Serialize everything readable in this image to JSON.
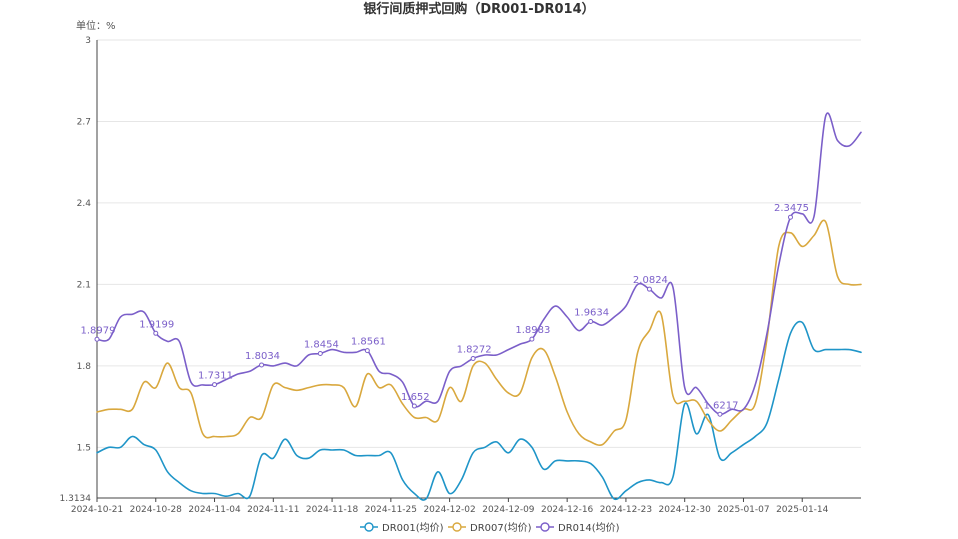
{
  "chart_data": {
    "type": "line",
    "title": "银行间质押式回购（DR001-DR014）",
    "unit_label": "单位：%",
    "ylim": [
      1.3134,
      3
    ],
    "y_ticks": [
      1.3134,
      1.5,
      1.8,
      2.1,
      2.4,
      2.7,
      3
    ],
    "y_tick_labels": [
      "1.3134",
      "1.5",
      "1.8",
      "2.1",
      "2.4",
      "2.7",
      "3"
    ],
    "x_tick_labels": [
      "2024-10-21",
      "2024-10-28",
      "2024-11-04",
      "2024-11-11",
      "2024-11-18",
      "2024-11-25",
      "2024-12-02",
      "2024-12-09",
      "2024-12-16",
      "2024-12-23",
      "2024-12-30",
      "2025-01-07",
      "2025-01-14"
    ],
    "x_tick_index": [
      0,
      5,
      10,
      15,
      20,
      25,
      30,
      35,
      40,
      45,
      50,
      55,
      60
    ],
    "n_points": 66,
    "grid": true,
    "legend_position": "bottom",
    "series": [
      {
        "name": "DR001(均价)",
        "color": "#1f95c8",
        "values": [
          1.48,
          1.5,
          1.5,
          1.54,
          1.51,
          1.49,
          1.41,
          1.37,
          1.34,
          1.33,
          1.33,
          1.32,
          1.33,
          1.32,
          1.47,
          1.46,
          1.53,
          1.47,
          1.46,
          1.49,
          1.49,
          1.49,
          1.47,
          1.47,
          1.47,
          1.48,
          1.38,
          1.33,
          1.31,
          1.41,
          1.33,
          1.38,
          1.48,
          1.5,
          1.52,
          1.48,
          1.53,
          1.5,
          1.42,
          1.45,
          1.45,
          1.45,
          1.44,
          1.39,
          1.31,
          1.34,
          1.37,
          1.38,
          1.37,
          1.39,
          1.66,
          1.55,
          1.62,
          1.46,
          1.48,
          1.51,
          1.54,
          1.59,
          1.75,
          1.92,
          1.96,
          1.86,
          1.86,
          1.86,
          1.86,
          1.85
        ]
      },
      {
        "name": "DR007(均价)",
        "color": "#d9a83e",
        "values": [
          1.63,
          1.64,
          1.64,
          1.64,
          1.74,
          1.72,
          1.81,
          1.72,
          1.7,
          1.55,
          1.54,
          1.54,
          1.55,
          1.61,
          1.61,
          1.73,
          1.72,
          1.71,
          1.72,
          1.73,
          1.73,
          1.72,
          1.65,
          1.77,
          1.72,
          1.73,
          1.66,
          1.61,
          1.61,
          1.6,
          1.72,
          1.67,
          1.8,
          1.81,
          1.75,
          1.7,
          1.7,
          1.83,
          1.86,
          1.76,
          1.63,
          1.55,
          1.52,
          1.51,
          1.56,
          1.6,
          1.85,
          1.93,
          1.99,
          1.69,
          1.67,
          1.67,
          1.6,
          1.56,
          1.6,
          1.64,
          1.66,
          1.9,
          2.24,
          2.29,
          2.24,
          2.28,
          2.33,
          2.13,
          2.1,
          2.1
        ]
      },
      {
        "name": "DR014(均价)",
        "color": "#7b5fc9",
        "values": [
          1.8979,
          1.8979,
          1.98,
          1.99,
          1.9979,
          1.9199,
          1.89,
          1.89,
          1.74,
          1.73,
          1.7311,
          1.75,
          1.77,
          1.78,
          1.8034,
          1.8,
          1.81,
          1.8,
          1.84,
          1.8454,
          1.86,
          1.85,
          1.85,
          1.8561,
          1.78,
          1.77,
          1.74,
          1.652,
          1.67,
          1.67,
          1.78,
          1.8,
          1.8272,
          1.84,
          1.84,
          1.86,
          1.88,
          1.8983,
          1.97,
          2.02,
          1.98,
          1.93,
          1.9634,
          1.95,
          1.98,
          2.02,
          2.1,
          2.0824,
          2.05,
          2.09,
          1.72,
          1.72,
          1.66,
          1.6217,
          1.64,
          1.64,
          1.73,
          1.92,
          2.17,
          2.3475,
          2.36,
          2.35,
          2.72,
          2.63,
          2.61,
          2.66
        ]
      }
    ],
    "callouts": [
      {
        "series": 2,
        "index": 0,
        "label": "1.8979"
      },
      {
        "series": 2,
        "index": 5,
        "label": "1.9199"
      },
      {
        "series": 2,
        "index": 10,
        "label": "1.7311"
      },
      {
        "series": 2,
        "index": 14,
        "label": "1.8034"
      },
      {
        "series": 2,
        "index": 19,
        "label": "1.8454"
      },
      {
        "series": 2,
        "index": 23,
        "label": "1.8561"
      },
      {
        "series": 2,
        "index": 27,
        "label": "1.652"
      },
      {
        "series": 2,
        "index": 32,
        "label": "1.8272"
      },
      {
        "series": 2,
        "index": 37,
        "label": "1.8983"
      },
      {
        "series": 2,
        "index": 42,
        "label": "1.9634"
      },
      {
        "series": 2,
        "index": 47,
        "label": "2.0824"
      },
      {
        "series": 2,
        "index": 53,
        "label": "1.6217"
      },
      {
        "series": 2,
        "index": 59,
        "label": "2.3475"
      }
    ]
  }
}
